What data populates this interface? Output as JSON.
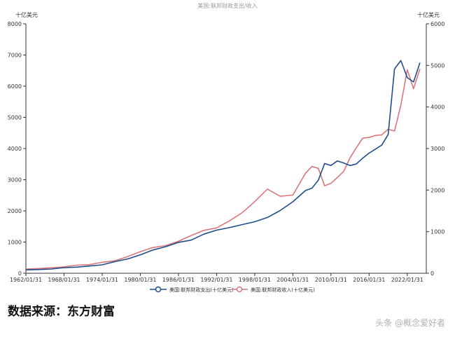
{
  "colors": {
    "spending": "#1f4e8c",
    "revenue": "#d9767a",
    "axis": "#333333",
    "grid": "#e6e6e6"
  },
  "source_note": "数据来源：东方财富",
  "watermark": "头条 @概念爱好者",
  "chart_data": {
    "type": "line",
    "title": "美国:联邦财政支出/收入",
    "left_axis": {
      "unit": "十亿美元",
      "ylim": [
        0,
        8000
      ],
      "ticks": [
        0,
        1000,
        2000,
        3000,
        4000,
        5000,
        6000,
        7000,
        8000
      ]
    },
    "right_axis": {
      "unit": "十亿美元",
      "ylim": [
        0,
        6000
      ],
      "ticks": [
        0,
        1000,
        2000,
        3000,
        4000,
        5000,
        6000
      ]
    },
    "x_ticks": [
      "1962/01/31",
      "1968/01/31",
      "1974/01/31",
      "1980/01/31",
      "1986/01/31",
      "1992/01/31",
      "1998/01/31",
      "2004/01/31",
      "2010/01/31",
      "2016/01/31",
      "2022/01/31"
    ],
    "grid": false,
    "legend_position": "bottom",
    "series": [
      {
        "name": "美国:联邦财政支出(十亿美元)",
        "axis": "left",
        "x": [
          1962,
          1964,
          1966,
          1968,
          1970,
          1972,
          1974,
          1976,
          1978,
          1980,
          1982,
          1984,
          1986,
          1988,
          1990,
          1992,
          1994,
          1996,
          1998,
          2000,
          2002,
          2004,
          2006,
          2007,
          2008,
          2009,
          2010,
          2011,
          2012,
          2013,
          2014,
          2015,
          2016,
          2017,
          2018,
          2019,
          2020,
          2021,
          2022,
          2023,
          2024
        ],
        "values": [
          107,
          119,
          135,
          179,
          196,
          231,
          269,
          372,
          459,
          591,
          746,
          852,
          990,
          1064,
          1253,
          1381,
          1462,
          1560,
          1652,
          1789,
          2011,
          2293,
          2655,
          2729,
          2983,
          3518,
          3457,
          3603,
          3537,
          3455,
          3506,
          3692,
          3853,
          3982,
          4109,
          4447,
          6553,
          6822,
          6273,
          6135,
          6752
        ]
      },
      {
        "name": "美国:联邦财政收入(十亿美元)",
        "axis": "right",
        "x": [
          1962,
          1964,
          1966,
          1968,
          1970,
          1972,
          1974,
          1976,
          1978,
          1980,
          1982,
          1984,
          1986,
          1988,
          1990,
          1992,
          1994,
          1996,
          1998,
          2000,
          2002,
          2004,
          2006,
          2007,
          2008,
          2009,
          2010,
          2011,
          2012,
          2013,
          2014,
          2015,
          2016,
          2017,
          2018,
          2019,
          2020,
          2021,
          2022,
          2023,
          2024
        ],
        "values": [
          100,
          113,
          131,
          153,
          193,
          207,
          263,
          298,
          399,
          517,
          618,
          666,
          769,
          909,
          1032,
          1091,
          1258,
          1453,
          1722,
          2025,
          1853,
          1880,
          2407,
          2568,
          2524,
          2105,
          2163,
          2303,
          2450,
          2775,
          3021,
          3250,
          3268,
          3316,
          3330,
          3463,
          3421,
          4047,
          4896,
          4439,
          4918
        ]
      }
    ]
  }
}
